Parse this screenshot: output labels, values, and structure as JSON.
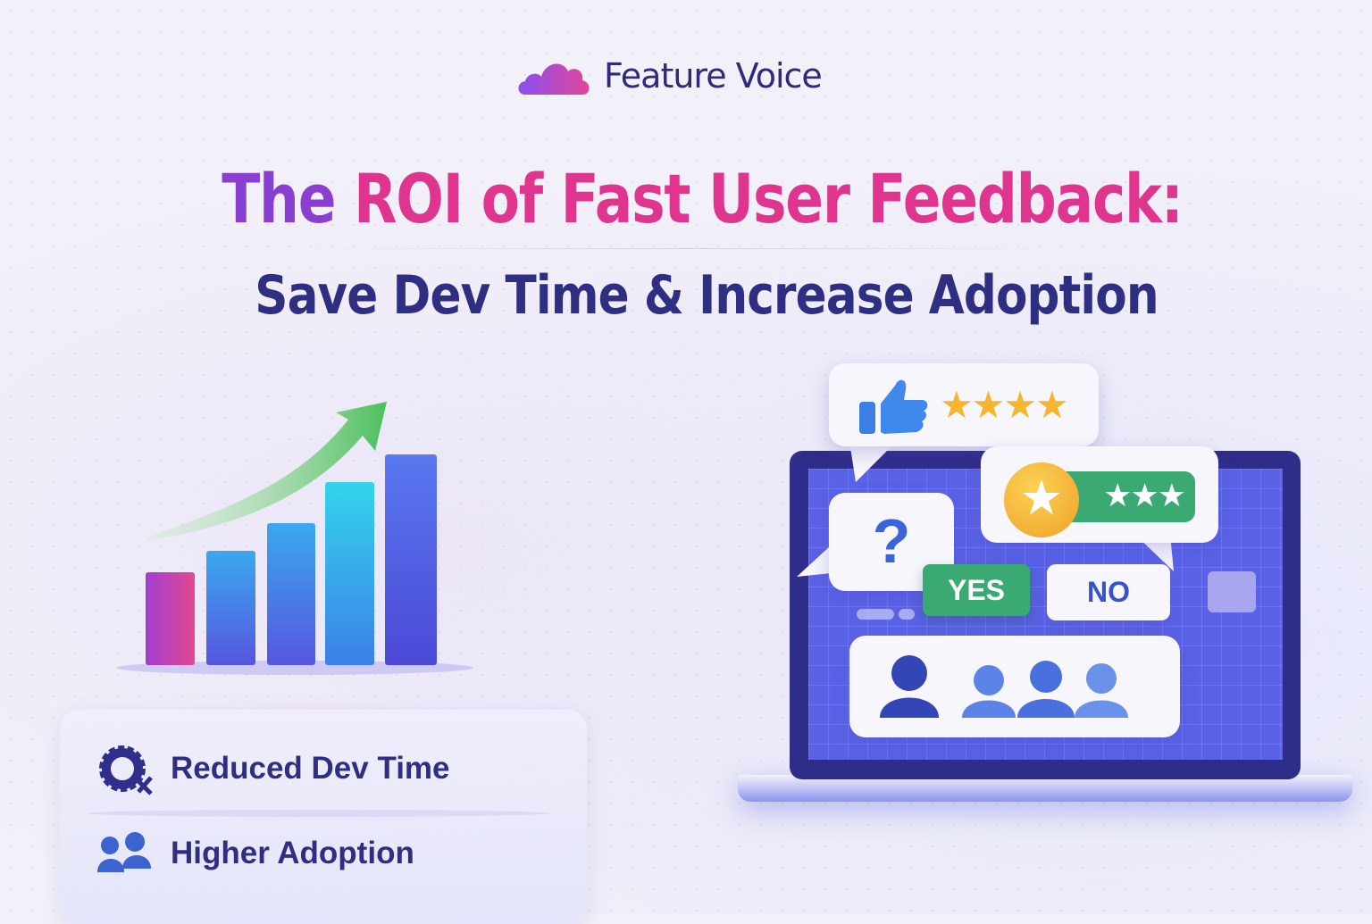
{
  "brand": {
    "name": "Feature Voice",
    "logo_icon": "cloud-icon"
  },
  "headline": {
    "part1": "The",
    "part2": "ROI of Fast User Feedback:",
    "subtitle": "Save Dev Time & Increase Adoption"
  },
  "colors": {
    "title_purple": "#8a3fd2",
    "title_pink": "#e0358e",
    "navy": "#2e2f82",
    "green": "#3aaa72",
    "star": "#f5b52e"
  },
  "illustration": {
    "chart_icon": "rising-bar-chart-icon",
    "laptop": {
      "yes_label": "YES",
      "no_label": "NO",
      "question_mark": "?",
      "thumbs_stars": 4,
      "rating_stars": 3
    }
  },
  "features": [
    {
      "icon": "gear-icon",
      "label": "Reduced Dev Time"
    },
    {
      "icon": "users-icon",
      "label": "Higher Adoption"
    }
  ]
}
